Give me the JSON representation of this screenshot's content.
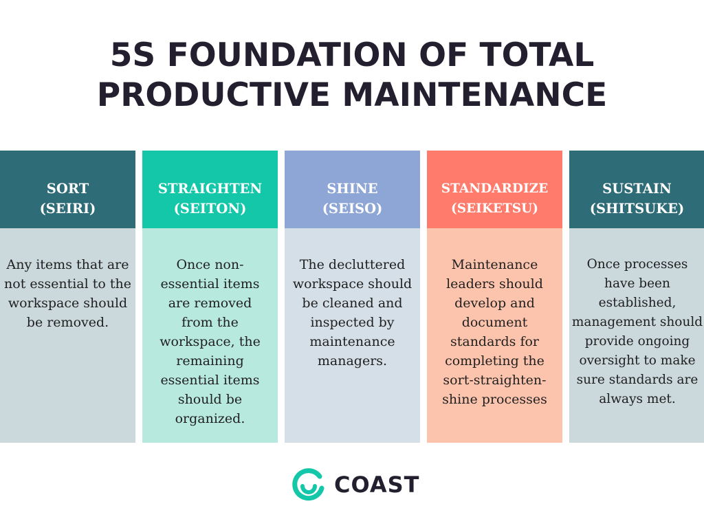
{
  "title": {
    "line1": "5S FOUNDATION OF TOTAL",
    "line2": "PRODUCTIVE MAINTENANCE"
  },
  "columns": [
    {
      "name": "SORT",
      "subtitle": "(SEIRI)",
      "description": "Any items that are not essential to the workspace should be removed.",
      "header_color": "#2e6c77",
      "body_color": "#cbd8dc"
    },
    {
      "name": "STRAIGHTEN",
      "subtitle": "(SEITON)",
      "description": "Once non-essential items are removed from the workspace, the remaining essential items should be organized.",
      "header_color": "#14c7a9",
      "body_color": "#b8e9df"
    },
    {
      "name": "SHINE",
      "subtitle": "(SEISO)",
      "description": "The decluttered workspace should be cleaned and inspected by maintenance managers.",
      "header_color": "#8ea6d6",
      "body_color": "#d4dfe7"
    },
    {
      "name": "STANDARDIZE",
      "subtitle": "(SEIKETSU)",
      "description": "Maintenance leaders should develop and document standards for completing the sort-straighten-shine processes",
      "header_color": "#ff7b6b",
      "body_color": "#fdc4ad"
    },
    {
      "name": "SUSTAIN",
      "subtitle": "(SHITSUKE)",
      "description": "Once  processes have been established, management should provide ongoing oversight to make sure standards are always met.",
      "header_color": "#2e6c77",
      "body_color": "#cbd8dc"
    }
  ],
  "logo": {
    "text": "COAST",
    "icon": "coast-logo-icon",
    "color": "#14c7a9"
  }
}
